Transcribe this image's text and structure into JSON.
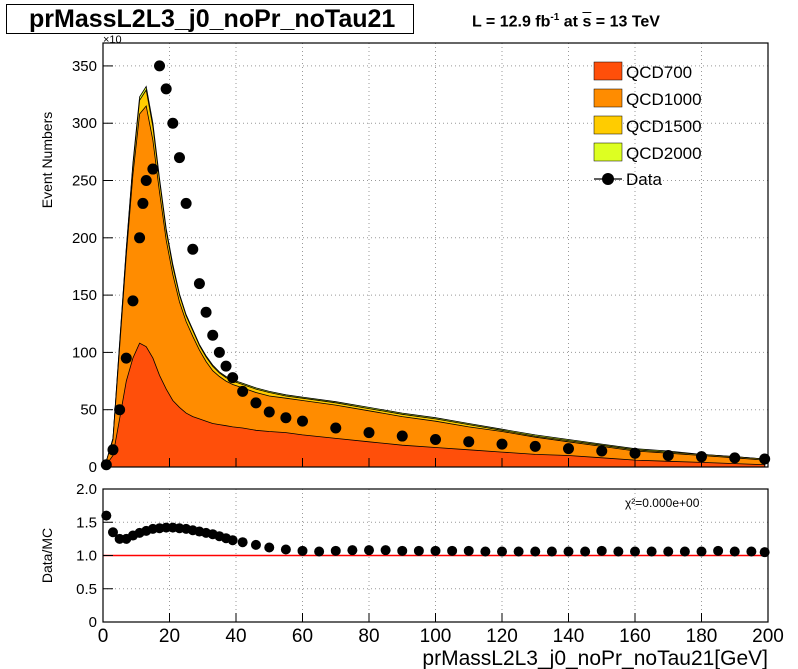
{
  "title": "prMassL2L3_j0_noPr_noTau21",
  "lumi": {
    "prefix": "L = 12.9 fb",
    "sup": "-1",
    "mid": " at  ",
    "sqrt": "s",
    "suffix": " = 13 TeV"
  },
  "colors": {
    "QCD700": "#ff4f0a",
    "QCD1000": "#ff8c00",
    "QCD1500": "#ffcc00",
    "QCD2000": "#ddff22",
    "data": "#000000",
    "ratio_line": "#ff0000"
  },
  "chart_data": [
    {
      "type": "area",
      "stacked": true,
      "ylabel": "Event Numbers",
      "y_multiplier_label": "×10",
      "xlim": [
        0,
        200
      ],
      "ylim": [
        0,
        370
      ],
      "yticks": [
        0,
        50,
        100,
        150,
        200,
        250,
        300,
        350
      ],
      "ytick_labels": [
        "0",
        "50",
        "100",
        "150",
        "200",
        "250",
        "300",
        "350"
      ],
      "grid": true,
      "legend_position": "top-right",
      "x": [
        1,
        3,
        5,
        7,
        9,
        11,
        13,
        15,
        17,
        19,
        21,
        23,
        25,
        27,
        29,
        31,
        33,
        35,
        37,
        39,
        42,
        46,
        50,
        55,
        60,
        70,
        80,
        90,
        100,
        110,
        120,
        130,
        140,
        150,
        160,
        170,
        180,
        190,
        199
      ],
      "series": [
        {
          "name": "QCD700",
          "values": [
            2,
            10,
            42,
            75,
            95,
            108,
            105,
            95,
            80,
            68,
            58,
            52,
            47,
            44,
            42,
            40,
            38,
            37,
            36,
            35,
            34,
            32,
            31,
            30,
            28,
            25,
            22,
            19,
            17,
            15,
            13,
            11,
            10,
            8,
            6,
            5,
            4,
            3,
            2
          ]
        },
        {
          "name": "QCD1000",
          "values": [
            3,
            14,
            62,
            110,
            160,
            200,
            210,
            190,
            160,
            130,
            110,
            92,
            80,
            70,
            60,
            52,
            46,
            42,
            39,
            37,
            35,
            33,
            31,
            30,
            30,
            29,
            27,
            25,
            23,
            20,
            18,
            15,
            12,
            10,
            8,
            7,
            6,
            5,
            4
          ]
        },
        {
          "name": "QCD1500",
          "values": [
            0,
            1,
            3,
            5,
            8,
            12,
            14,
            12,
            10,
            8,
            7,
            6,
            5,
            5,
            4,
            4,
            4,
            3,
            3,
            3,
            3,
            3,
            3,
            2,
            2,
            2,
            2,
            2,
            2,
            2,
            1,
            1,
            1,
            1,
            1,
            1,
            1,
            1,
            1
          ]
        },
        {
          "name": "QCD2000",
          "values": [
            0,
            0,
            1,
            1,
            2,
            3,
            3,
            3,
            2,
            2,
            2,
            1,
            1,
            1,
            1,
            1,
            1,
            1,
            1,
            1,
            1,
            1,
            1,
            1,
            1,
            1,
            1,
            1,
            1,
            1,
            1,
            1,
            1,
            1,
            1,
            1,
            0,
            0,
            0
          ]
        },
        {
          "name": "Data",
          "type": "scatter",
          "x": [
            1,
            3,
            5,
            7,
            9,
            11,
            12,
            13,
            15,
            17,
            19,
            21,
            23,
            25,
            27,
            29,
            31,
            33,
            35,
            37,
            39,
            42,
            46,
            50,
            55,
            60,
            70,
            80,
            90,
            100,
            110,
            120,
            130,
            140,
            150,
            160,
            170,
            180,
            190,
            199
          ],
          "values": [
            2,
            15,
            50,
            95,
            145,
            200,
            230,
            250,
            260,
            350,
            330,
            300,
            270,
            230,
            190,
            160,
            135,
            115,
            100,
            88,
            78,
            66,
            56,
            48,
            43,
            40,
            34,
            30,
            27,
            24,
            22,
            20,
            18,
            16,
            14,
            12,
            10,
            9,
            8,
            7
          ]
        }
      ]
    },
    {
      "type": "scatter",
      "xlabel": "prMassL2L3_j0_noPr_noTau21[GeV]",
      "ylabel": "Data/MC",
      "annotation": "χ²=0.000e+00",
      "xlim": [
        0,
        200
      ],
      "ylim": [
        0,
        2
      ],
      "yticks": [
        0,
        0.5,
        1,
        1.5,
        2
      ],
      "ytick_labels": [
        "0",
        "0.5",
        "1.0",
        "1.5",
        "2.0"
      ],
      "xticks": [
        0,
        20,
        40,
        60,
        80,
        100,
        120,
        140,
        160,
        180,
        200
      ],
      "xtick_labels": [
        "0",
        "20",
        "40",
        "60",
        "80",
        "100",
        "120",
        "140",
        "160",
        "180",
        "200"
      ],
      "reference_line": 1.0,
      "grid": true,
      "x": [
        1,
        3,
        5,
        7,
        9,
        11,
        13,
        15,
        17,
        19,
        21,
        23,
        25,
        27,
        29,
        31,
        33,
        35,
        37,
        39,
        42,
        46,
        50,
        55,
        60,
        65,
        70,
        75,
        80,
        85,
        90,
        95,
        100,
        105,
        110,
        115,
        120,
        125,
        130,
        135,
        140,
        145,
        150,
        155,
        160,
        165,
        170,
        175,
        180,
        185,
        190,
        195,
        199
      ],
      "values": [
        1.6,
        1.35,
        1.25,
        1.25,
        1.3,
        1.34,
        1.37,
        1.4,
        1.41,
        1.42,
        1.42,
        1.41,
        1.4,
        1.38,
        1.36,
        1.34,
        1.32,
        1.29,
        1.26,
        1.23,
        1.2,
        1.16,
        1.12,
        1.09,
        1.07,
        1.06,
        1.07,
        1.08,
        1.08,
        1.08,
        1.07,
        1.07,
        1.07,
        1.07,
        1.07,
        1.06,
        1.06,
        1.06,
        1.06,
        1.06,
        1.06,
        1.06,
        1.07,
        1.06,
        1.06,
        1.06,
        1.06,
        1.06,
        1.06,
        1.07,
        1.06,
        1.06,
        1.05
      ]
    }
  ]
}
